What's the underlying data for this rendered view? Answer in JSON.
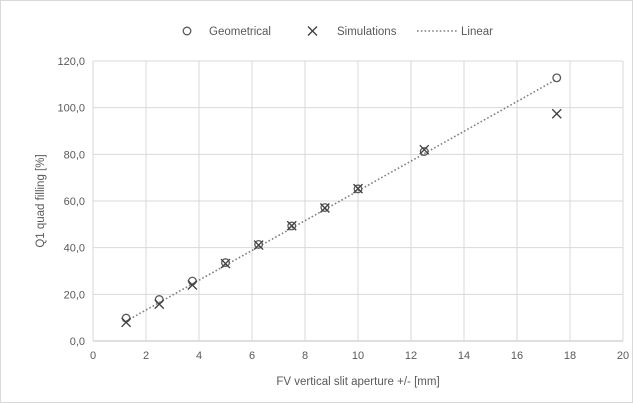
{
  "chart_data": {
    "type": "scatter",
    "xlabel": "FV vertical slit aperture +/- [mm]",
    "ylabel": "Q1 quad filling [%]",
    "xlim": [
      0,
      20
    ],
    "ylim": [
      0,
      120
    ],
    "x_ticks": [
      "0",
      "2",
      "4",
      "6",
      "8",
      "10",
      "12",
      "14",
      "16",
      "18",
      "20"
    ],
    "y_ticks": [
      "0,0",
      "20,0",
      "40,0",
      "60,0",
      "80,0",
      "100,0",
      "120,0"
    ],
    "x_tick_values": [
      0,
      2,
      4,
      6,
      8,
      10,
      12,
      14,
      16,
      18,
      20
    ],
    "y_tick_values": [
      0,
      20,
      40,
      60,
      80,
      100,
      120
    ],
    "grid": true,
    "legend_position": "top",
    "series": [
      {
        "name": "Geometrical",
        "marker": "circle",
        "color": "#595959",
        "points": [
          [
            1.25,
            9.8
          ],
          [
            2.5,
            17.8
          ],
          [
            3.75,
            25.7
          ],
          [
            5.0,
            33.6
          ],
          [
            6.25,
            41.4
          ],
          [
            7.5,
            49.3
          ],
          [
            8.75,
            57.2
          ],
          [
            10.0,
            65.2
          ],
          [
            12.5,
            81.2
          ],
          [
            17.5,
            112.8
          ]
        ]
      },
      {
        "name": "Simulations",
        "marker": "x",
        "color": "#404040",
        "points": [
          [
            1.25,
            8.0
          ],
          [
            2.5,
            15.8
          ],
          [
            3.75,
            24.0
          ],
          [
            5.0,
            33.2
          ],
          [
            6.25,
            41.1
          ],
          [
            7.5,
            49.4
          ],
          [
            8.75,
            57.0
          ],
          [
            10.0,
            65.3
          ],
          [
            12.5,
            82.0
          ],
          [
            17.5,
            97.4
          ]
        ]
      },
      {
        "name": "Linear",
        "marker": "dotted-line",
        "color": "#7f7f7f",
        "points": [
          [
            1.25,
            8.5
          ],
          [
            17.5,
            112.2
          ]
        ]
      }
    ]
  }
}
